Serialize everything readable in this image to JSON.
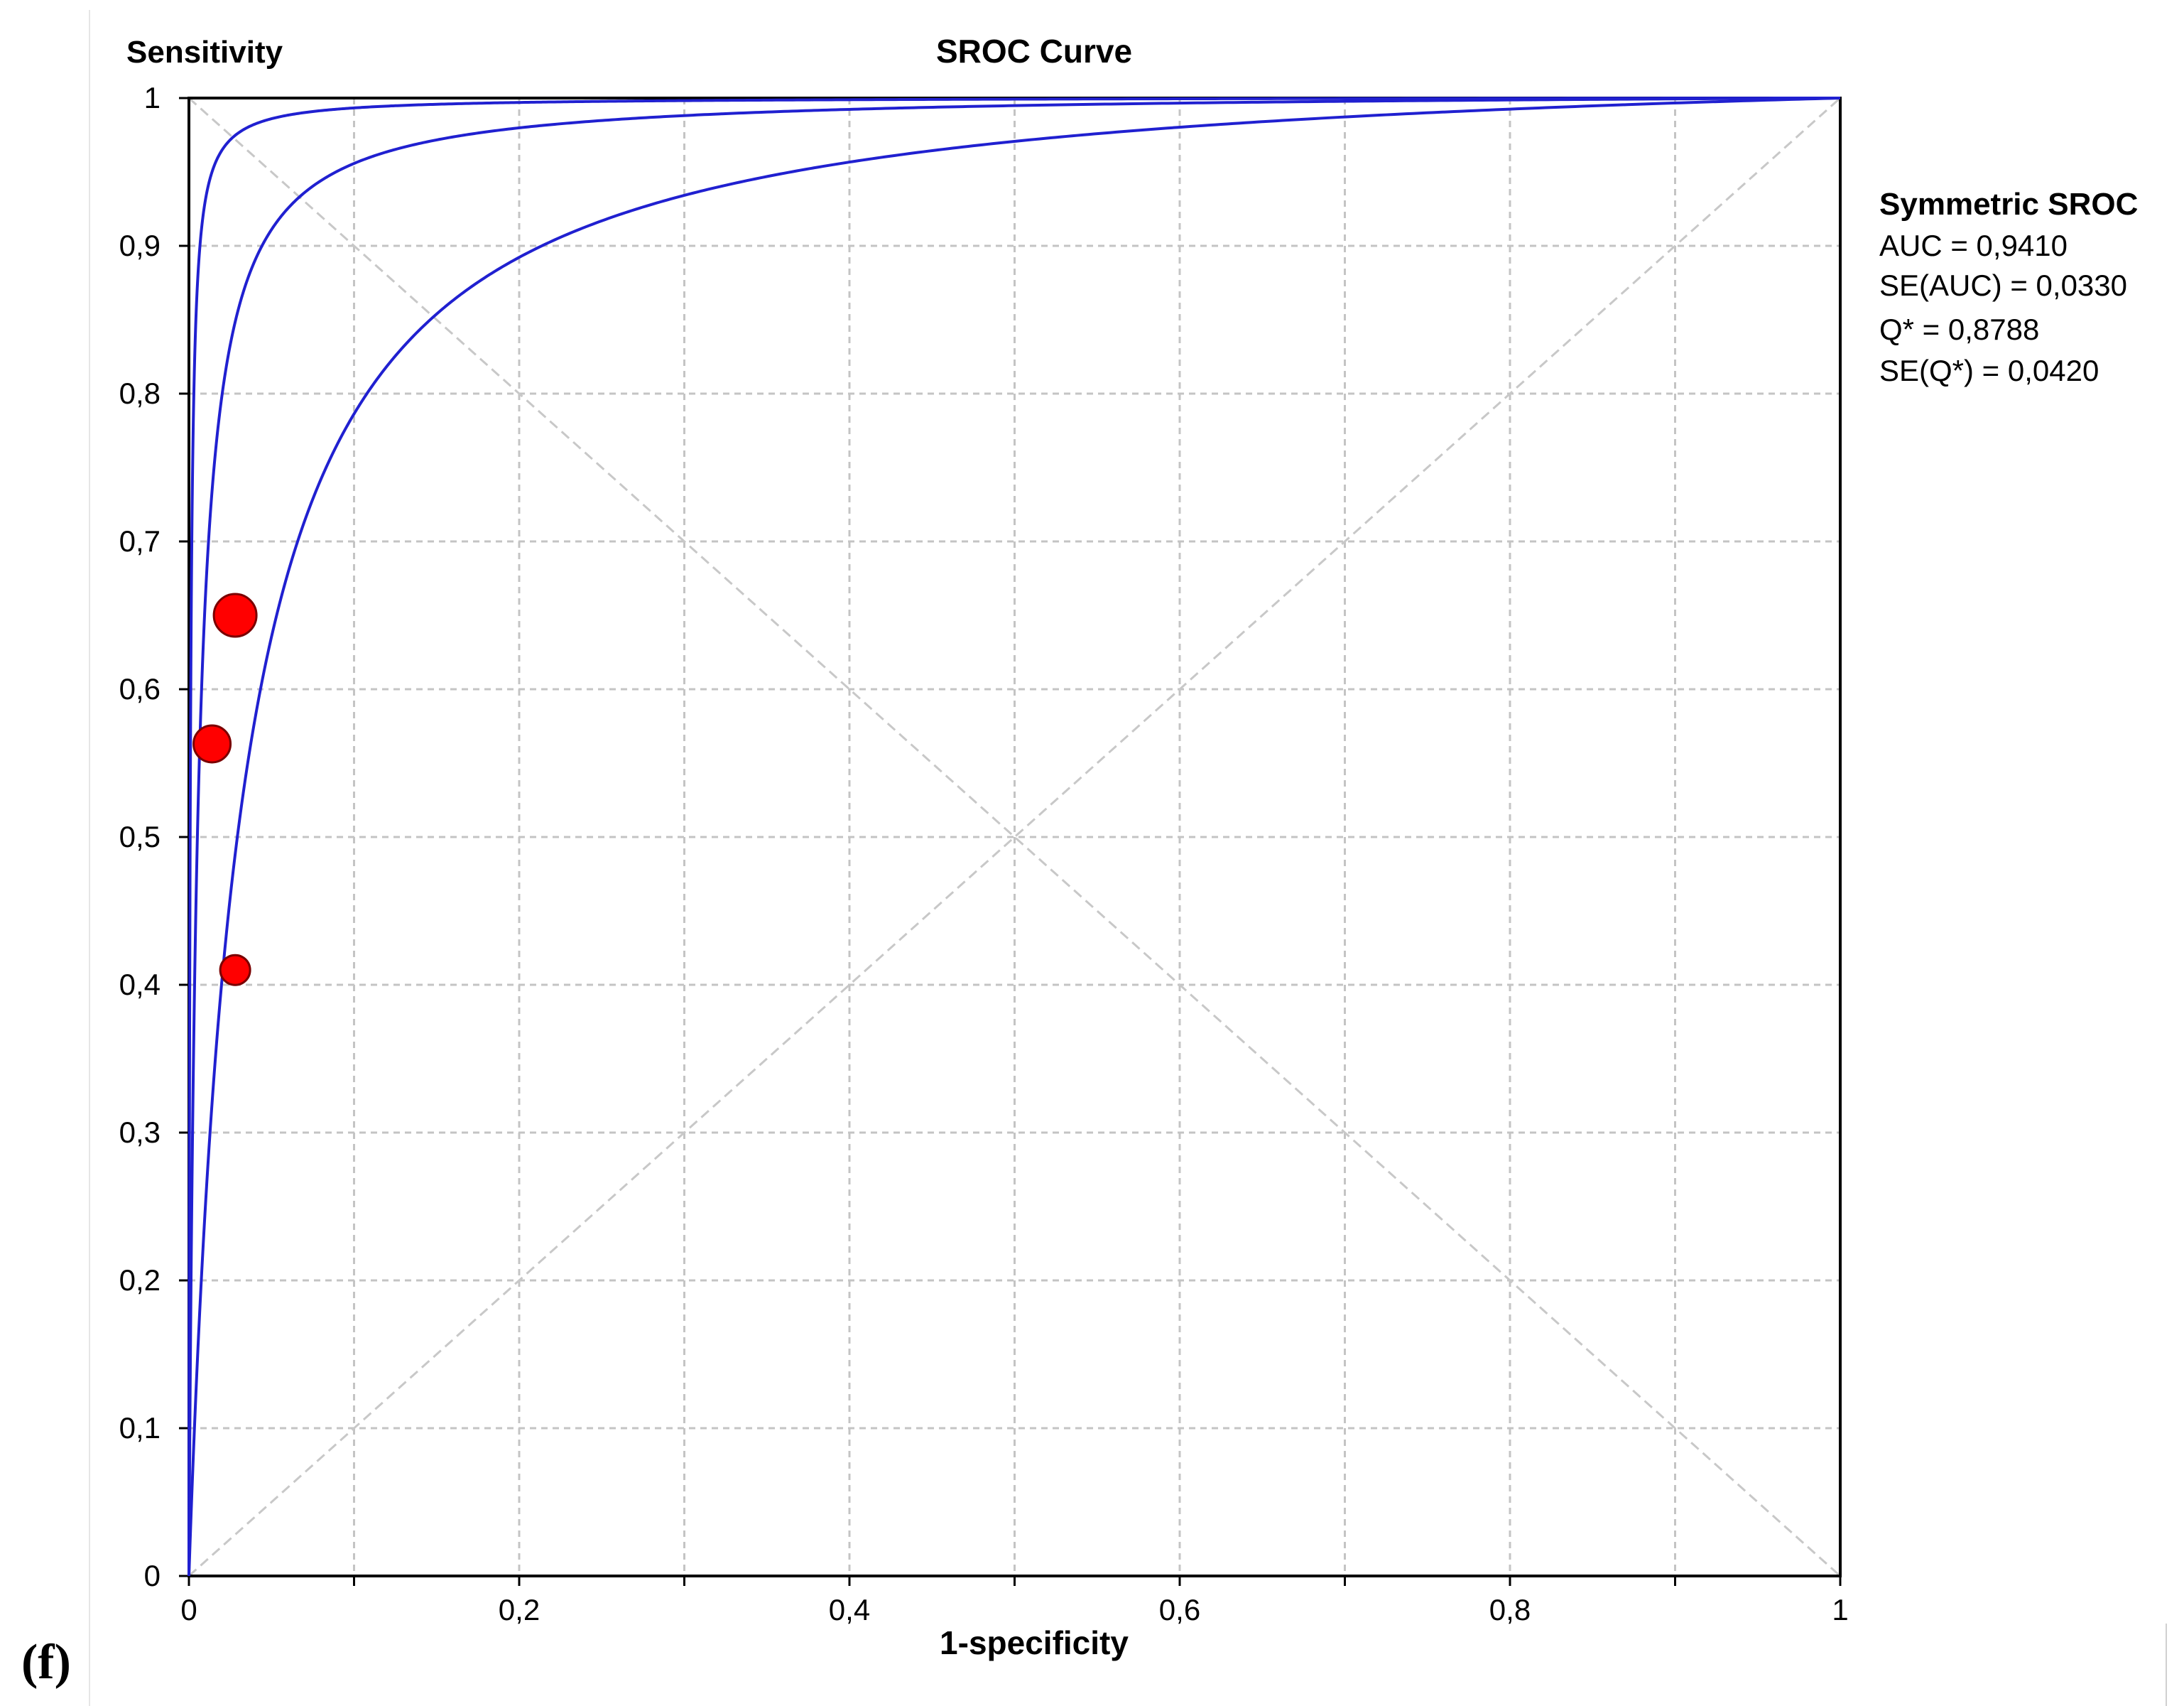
{
  "panel_label": "(f)",
  "chart_data": {
    "type": "line",
    "title": "SROC Curve",
    "xlabel": "1-specificity",
    "ylabel": "Sensitivity",
    "xlim": [
      0,
      1
    ],
    "ylim": [
      0,
      1
    ],
    "grid": true,
    "x_ticks": [
      0,
      0.1,
      0.2,
      0.3,
      0.4,
      0.5,
      0.6,
      0.7,
      0.8,
      0.9,
      1
    ],
    "y_ticks": [
      0,
      0.1,
      0.2,
      0.3,
      0.4,
      0.5,
      0.6,
      0.7,
      0.8,
      0.9,
      1
    ],
    "x_tick_labels": [
      "0",
      "0,2",
      "0,4",
      "0,6",
      "0,8",
      "1"
    ],
    "x_tick_label_values": [
      0,
      0.2,
      0.4,
      0.6,
      0.8,
      1
    ],
    "y_tick_labels": [
      "0",
      "0,1",
      "0,2",
      "0,3",
      "0,4",
      "0,5",
      "0,6",
      "0,7",
      "0,8",
      "0,9",
      "1"
    ],
    "y_tick_label_values": [
      0,
      0.1,
      0.2,
      0.3,
      0.4,
      0.5,
      0.6,
      0.7,
      0.8,
      0.9,
      1
    ],
    "series": [
      {
        "name": "SROC upper bound",
        "model": "symmetric",
        "log_dor": 7.2,
        "color": "#2020d0"
      },
      {
        "name": "SROC curve",
        "model": "symmetric",
        "log_dor": 5.27,
        "color": "#2020d0"
      },
      {
        "name": "SROC lower bound",
        "model": "symmetric",
        "log_dor": 3.5,
        "color": "#2020d0"
      }
    ],
    "reference_lines": [
      {
        "name": "chance diagonal",
        "from": [
          0,
          0
        ],
        "to": [
          1,
          1
        ],
        "color": "#c8c8c8"
      },
      {
        "name": "Q* diagonal",
        "from": [
          0,
          1
        ],
        "to": [
          1,
          0
        ],
        "color": "#c8c8c8"
      }
    ],
    "points": [
      {
        "x": 0.028,
        "y": 0.65,
        "weight": "large"
      },
      {
        "x": 0.014,
        "y": 0.563,
        "weight": "medium"
      },
      {
        "x": 0.028,
        "y": 0.41,
        "weight": "small"
      }
    ],
    "point_color": "#ff0000",
    "legend": {
      "position": "right",
      "title": "Symmetric SROC",
      "lines": [
        "AUC = 0,9410",
        "SE(AUC) = 0,0330",
        "Q* = 0,8788",
        "SE(Q*) = 0,0420"
      ]
    },
    "stats": {
      "AUC": 0.941,
      "SE_AUC": 0.033,
      "Q_star": 0.8788,
      "SE_Q_star": 0.042
    }
  }
}
